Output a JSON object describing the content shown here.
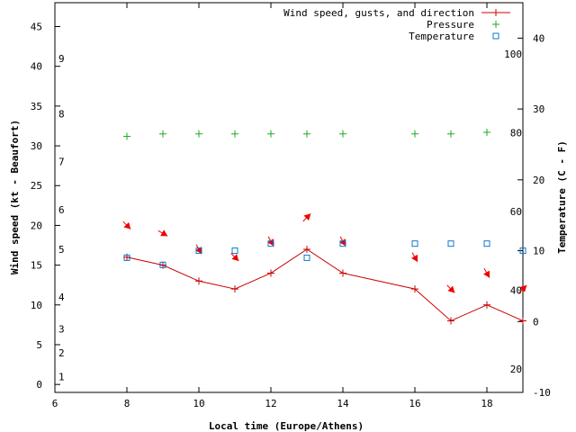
{
  "chart_data": {
    "type": "line",
    "xlabel": "Local time (Europe/Athens)",
    "ylabel": "Wind speed (kt - Beaufort)",
    "y2label": "Temperature (C - F)",
    "xlim": [
      6,
      19
    ],
    "ylim": [
      -1,
      48
    ],
    "y2lim": [
      -10,
      45
    ],
    "x_ticks": [
      6,
      8,
      10,
      12,
      14,
      16,
      18
    ],
    "y_ticks": [
      0,
      5,
      10,
      15,
      20,
      25,
      30,
      35,
      40,
      45
    ],
    "y2_ticks": [
      -10,
      0,
      10,
      20,
      30,
      40
    ],
    "beaufort_labels": [
      {
        "label": "1",
        "kt": 1
      },
      {
        "label": "2",
        "kt": 4
      },
      {
        "label": "3",
        "kt": 7
      },
      {
        "label": "4",
        "kt": 11
      },
      {
        "label": "5",
        "kt": 17
      },
      {
        "label": "6",
        "kt": 22
      },
      {
        "label": "7",
        "kt": 28
      },
      {
        "label": "8",
        "kt": 34
      },
      {
        "label": "9",
        "kt": 41
      }
    ],
    "fahrenheit_labels": [
      {
        "label": "20",
        "celsius": -6.67
      },
      {
        "label": "40",
        "celsius": 4.44
      },
      {
        "label": "60",
        "celsius": 15.56
      },
      {
        "label": "80",
        "celsius": 26.67
      },
      {
        "label": "100",
        "celsius": 37.78
      }
    ],
    "legend": {
      "position": "top-right",
      "entries": [
        "Wind speed, gusts, and direction",
        "Pressure",
        "Temperature"
      ]
    },
    "colors": {
      "wind": "#cc0000",
      "pressure": "#22aa22",
      "temperature": "#1177cc",
      "arrow": "#ee0000"
    },
    "series": [
      {
        "name": "Wind speed, gusts, and direction",
        "axis": "y",
        "x": [
          8,
          9,
          10,
          11,
          12,
          13,
          14,
          16,
          17,
          18,
          19
        ],
        "values": [
          16,
          15,
          13,
          12,
          14,
          17,
          14,
          12,
          8,
          10,
          8
        ],
        "direction_deg": [
          315,
          300,
          330,
          315,
          330,
          225,
          330,
          330,
          315,
          330,
          225
        ]
      },
      {
        "name": "Pressure",
        "axis": "y",
        "x": [
          8,
          9,
          10,
          11,
          12,
          13,
          14,
          16,
          17,
          18
        ],
        "values": [
          31.2,
          31.5,
          31.5,
          31.5,
          31.5,
          31.5,
          31.5,
          31.5,
          31.5,
          31.7
        ]
      },
      {
        "name": "Temperature",
        "axis": "y2",
        "x": [
          8,
          9,
          10,
          11,
          12,
          13,
          14,
          16,
          17,
          18,
          19
        ],
        "values": [
          9,
          8,
          10,
          10,
          11,
          9,
          11,
          11,
          11,
          11,
          10
        ]
      }
    ]
  }
}
